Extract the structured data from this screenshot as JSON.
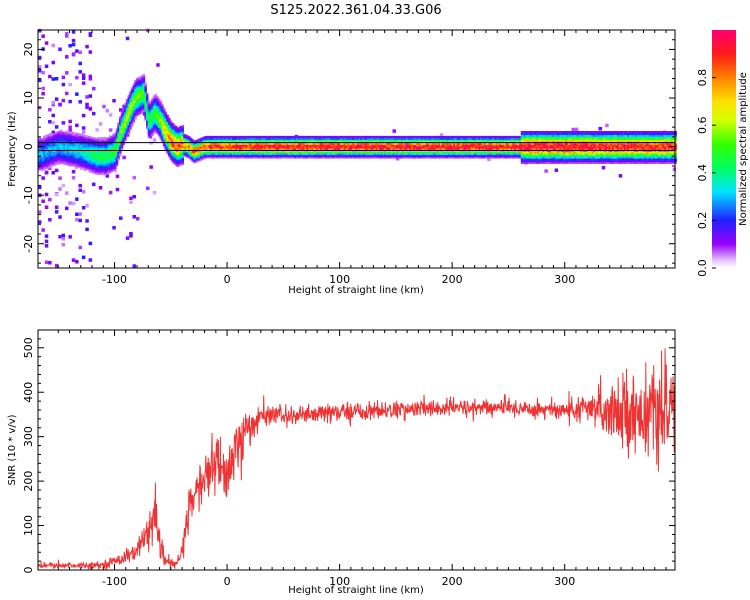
{
  "figure_title": "S125.2022.361.04.33.G06",
  "chart_data": [
    {
      "type": "heatmap",
      "xlabel": "Height of straight line (km)",
      "ylabel": "Frequency (Hz)",
      "xlim": [
        -168,
        398
      ],
      "ylim": [
        -25,
        24
      ],
      "xticks": [
        -100,
        0,
        100,
        200,
        300
      ],
      "yticks": [
        -20,
        -10,
        0,
        10,
        20
      ],
      "colorbar": {
        "label": "Normalized spectral amplitude",
        "range": [
          0,
          1
        ],
        "ticks": [
          "0.0",
          "0.2",
          "0.4",
          "0.6",
          "0.8"
        ],
        "tick_values": [
          0.0,
          0.2,
          0.4,
          0.6,
          0.8
        ],
        "colormap": "hsv-rainbow (purple→blue→cyan→green→yellow→orange→red→pink)"
      },
      "reference_lines_hz": [
        -0.8,
        0.8
      ],
      "ridge": {
        "description": "dominant frequency ridge vs height",
        "x": [
          -165,
          -150,
          -130,
          -115,
          -108,
          -100,
          -95,
          -88,
          -82,
          -75,
          -70,
          -65,
          -60,
          -55,
          -50,
          -45,
          -40,
          -35,
          -30,
          -20,
          -10,
          0,
          50,
          100,
          200,
          300,
          395
        ],
        "y": [
          -1.5,
          0.0,
          -1.0,
          -2.0,
          -2.0,
          -1.0,
          3.0,
          7.0,
          10.0,
          11.0,
          5.0,
          7.0,
          5.5,
          3.0,
          1.0,
          0.0,
          0.5,
          0.0,
          -1.0,
          0.0,
          0.0,
          0.0,
          0.0,
          0.0,
          0.0,
          0.0,
          0.0
        ],
        "amplitude": [
          0.3,
          0.3,
          0.35,
          0.45,
          0.45,
          0.5,
          0.55,
          0.6,
          0.55,
          0.5,
          0.45,
          0.5,
          0.55,
          0.75,
          0.85,
          0.85,
          0.8,
          0.8,
          0.85,
          0.85,
          0.9,
          0.9,
          0.95,
          0.95,
          0.95,
          0.95,
          0.9
        ]
      }
    },
    {
      "type": "line",
      "xlabel": "Height of straight line (km)",
      "ylabel": "SNR (10 * v/v)",
      "xlim": [
        -168,
        398
      ],
      "ylim": [
        0,
        540
      ],
      "xticks": [
        -100,
        0,
        100,
        200,
        300
      ],
      "yticks": [
        0,
        100,
        200,
        300,
        400,
        500
      ],
      "line_color": "#ee3333",
      "series": [
        {
          "x": [
            -168,
            -140,
            -110,
            -100,
            -90,
            -80,
            -70,
            -65,
            -60,
            -55,
            -50,
            -45,
            -40,
            -35,
            -30,
            -25,
            -20,
            -15,
            -10,
            -5,
            0,
            5,
            10,
            15,
            20,
            25,
            30,
            40,
            60,
            80,
            100,
            150,
            200,
            250,
            300,
            320,
            340,
            360,
            380,
            398
          ],
          "y": [
            10,
            10,
            12,
            20,
            30,
            45,
            80,
            110,
            60,
            20,
            15,
            12,
            40,
            120,
            170,
            190,
            200,
            230,
            240,
            230,
            220,
            250,
            280,
            300,
            320,
            335,
            345,
            350,
            345,
            350,
            355,
            360,
            365,
            365,
            360,
            360,
            365,
            355,
            350,
            350
          ],
          "noise": [
            6,
            6,
            8,
            10,
            15,
            20,
            40,
            50,
            40,
            15,
            10,
            8,
            25,
            50,
            50,
            50,
            50,
            60,
            60,
            60,
            60,
            70,
            80,
            60,
            40,
            30,
            25,
            20,
            20,
            20,
            20,
            18,
            18,
            18,
            22,
            30,
            60,
            80,
            90,
            80
          ]
        }
      ]
    }
  ]
}
